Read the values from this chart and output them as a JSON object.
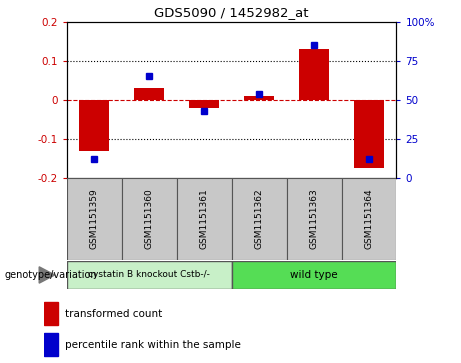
{
  "title": "GDS5090 / 1452982_at",
  "samples": [
    "GSM1151359",
    "GSM1151360",
    "GSM1151361",
    "GSM1151362",
    "GSM1151363",
    "GSM1151364"
  ],
  "red_values": [
    -0.13,
    0.03,
    -0.02,
    0.01,
    0.13,
    -0.175
  ],
  "blue_values": [
    12,
    65,
    43,
    54,
    85,
    12
  ],
  "ylim_left": [
    -0.2,
    0.2
  ],
  "ylim_right": [
    0,
    100
  ],
  "yticks_left": [
    -0.2,
    -0.1,
    0.0,
    0.1,
    0.2
  ],
  "yticks_right": [
    0,
    25,
    50,
    75,
    100
  ],
  "ytick_labels_right": [
    "0",
    "25",
    "50",
    "75",
    "100%"
  ],
  "red_color": "#cc0000",
  "blue_color": "#0000cc",
  "bar_width": 0.55,
  "legend_red": "transformed count",
  "legend_blue": "percentile rank within the sample",
  "genotype_label": "genotype/variation",
  "group1_label": "cystatin B knockout Cstb-/-",
  "group2_label": "wild type",
  "group1_color": "#c8f0c8",
  "group2_color": "#55dd55",
  "sample_box_color": "#c8c8c8",
  "spine_color": "#999999",
  "figure_bg": "#ffffff"
}
